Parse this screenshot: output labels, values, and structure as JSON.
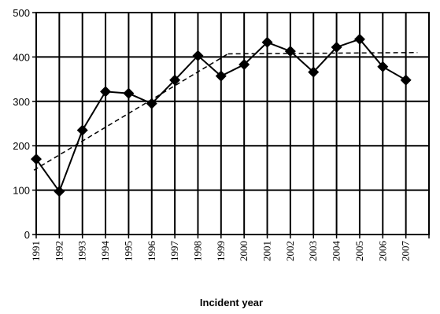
{
  "chart_data": {
    "type": "line",
    "title": "",
    "xlabel": "Incident year",
    "ylabel": "",
    "categories": [
      "1991",
      "1992",
      "1993",
      "1994",
      "1995",
      "1996",
      "1997",
      "1998",
      "1999",
      "2000",
      "2001",
      "2002",
      "2003",
      "2004",
      "2005",
      "2006",
      "2007"
    ],
    "series": [
      {
        "name": "",
        "values": [
          170,
          97,
          235,
          322,
          318,
          295,
          348,
          403,
          357,
          383,
          433,
          413,
          366,
          422,
          440,
          378,
          348
        ],
        "color": "#000000",
        "marker": "diamond"
      }
    ],
    "trendline": {
      "style": "dashed",
      "color": "#000000",
      "segments": [
        {
          "from": {
            "x": 1990.9,
            "y": 145
          },
          "to": {
            "x": 1999.3,
            "y": 407
          }
        },
        {
          "from": {
            "x": 1999.3,
            "y": 407
          },
          "to": {
            "x": 2007.5,
            "y": 410
          }
        }
      ]
    },
    "ylim": [
      0,
      500
    ],
    "yticks": [
      0,
      100,
      200,
      300,
      400,
      500
    ],
    "grid": true
  }
}
